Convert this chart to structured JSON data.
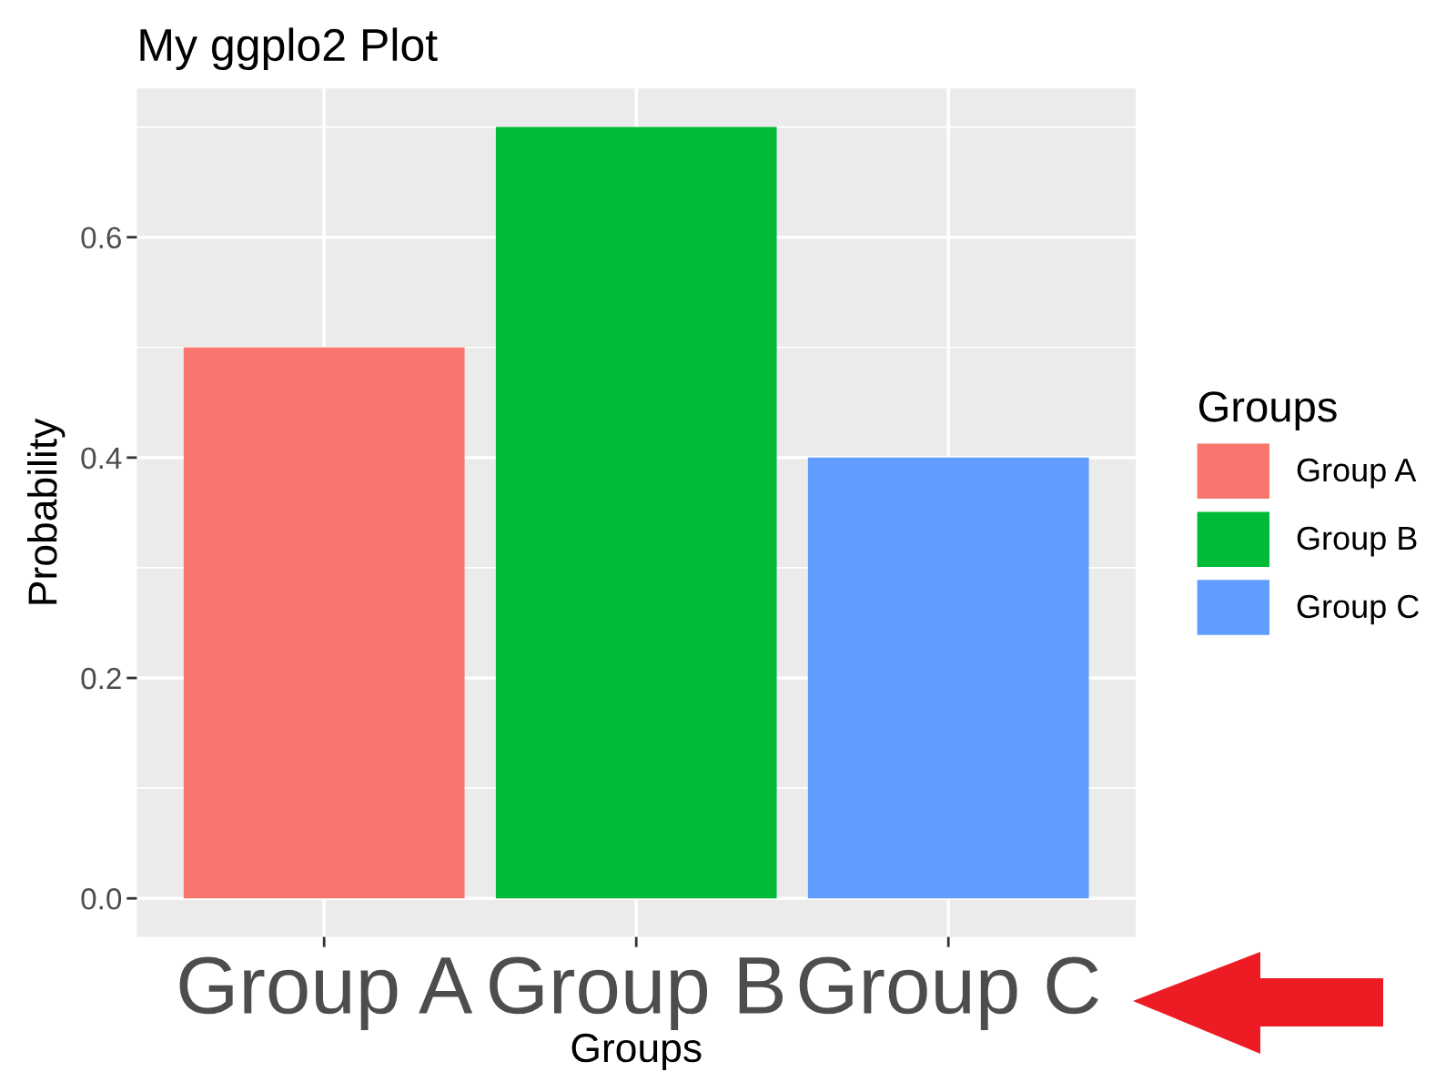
{
  "chart_data": {
    "type": "bar",
    "title": "My ggplo2 Plot",
    "xlabel": "Groups",
    "ylabel": "Probability",
    "legend_title": "Groups",
    "categories": [
      "Group A",
      "Group B",
      "Group C"
    ],
    "series": [
      {
        "name": "Group A",
        "color": "#f8766d",
        "values": [
          0.5,
          null,
          null
        ]
      },
      {
        "name": "Group B",
        "color": "#00ba38",
        "values": [
          null,
          0.7,
          null
        ]
      },
      {
        "name": "Group C",
        "color": "#619cff",
        "values": [
          null,
          null,
          0.4
        ]
      }
    ],
    "ylim": [
      -0.035,
      0.735
    ],
    "yticks": [
      {
        "value": 0,
        "label": "0.0"
      },
      {
        "value": 0.2,
        "label": "0.2"
      },
      {
        "value": 0.4,
        "label": "0.4"
      },
      {
        "value": 0.6,
        "label": "0.6"
      }
    ],
    "grid": true,
    "legend": "right"
  }
}
